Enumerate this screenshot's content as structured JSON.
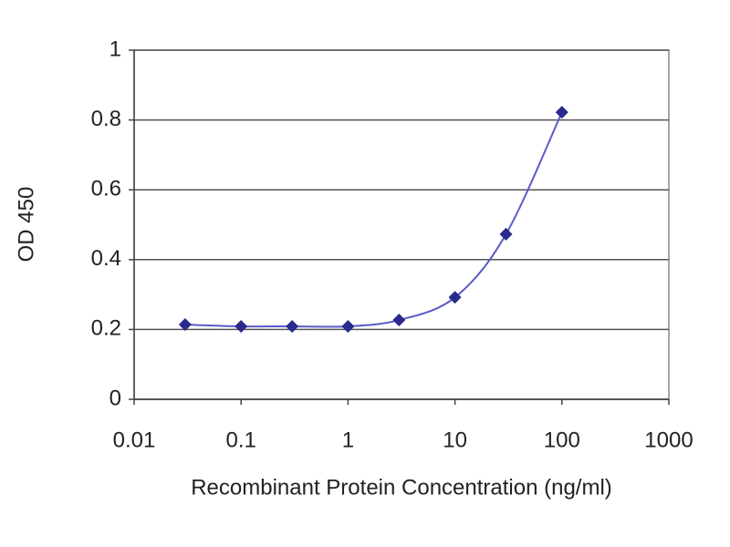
{
  "chart_data": {
    "type": "line",
    "x_label": "Recombinant Protein Concentration (ng/ml)",
    "y_label": "OD 450",
    "x": [
      0.03,
      0.1,
      0.3,
      1,
      3,
      10,
      30,
      100
    ],
    "series": [
      {
        "name": "OD 450",
        "color": "#2a2a8c",
        "line_color": "#5a5ac8",
        "values": [
          0.214,
          0.209,
          0.209,
          0.209,
          0.227,
          0.292,
          0.473,
          0.822
        ]
      }
    ],
    "xlim": [
      0.01,
      1000
    ],
    "xticks": [
      0.01,
      0.1,
      1,
      10,
      100,
      1000
    ],
    "xscale": "log",
    "ylim": [
      0,
      1
    ],
    "yticks": [
      0,
      0.2,
      0.4,
      0.6,
      0.8,
      1
    ],
    "grid": true
  }
}
